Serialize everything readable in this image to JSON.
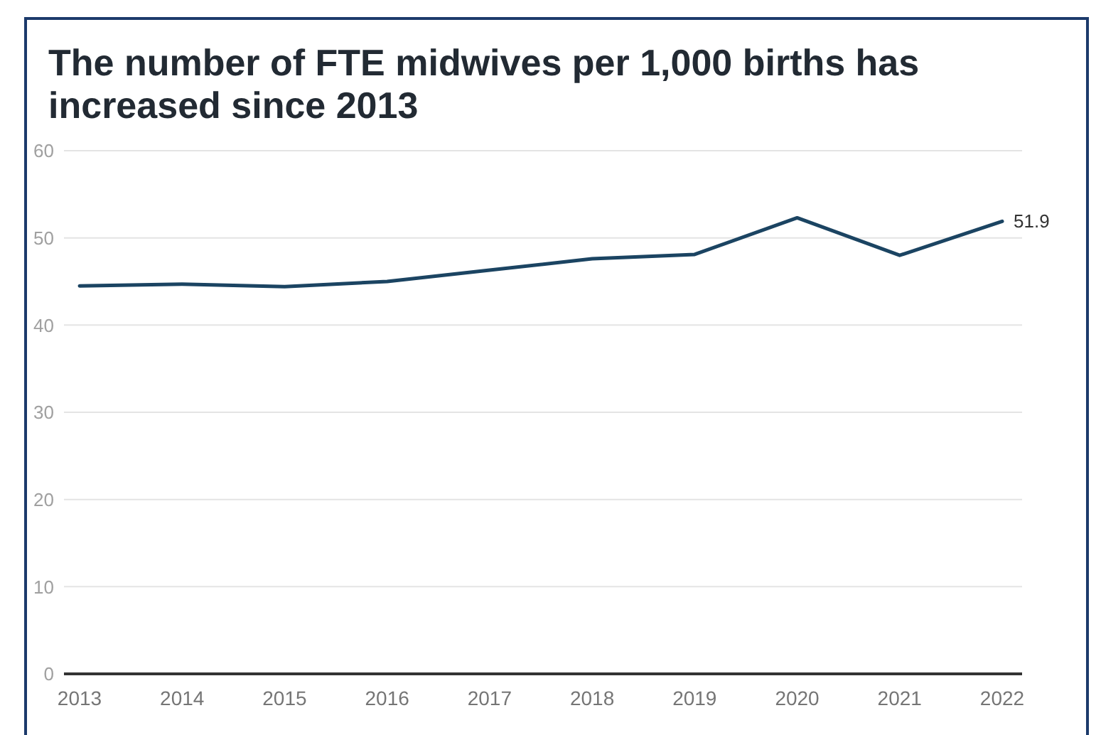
{
  "chart_data": {
    "type": "line",
    "title": "The number of FTE midwives per 1,000 births has increased since 2013",
    "categories": [
      "2013",
      "2014",
      "2015",
      "2016",
      "2017",
      "2018",
      "2019",
      "2020",
      "2021",
      "2022"
    ],
    "series": [
      {
        "color": "#1b4462",
        "values": [
          44.5,
          44.7,
          44.4,
          45.0,
          46.3,
          47.6,
          48.1,
          52.3,
          48.0,
          51.9
        ],
        "value_labels": [
          null,
          null,
          null,
          null,
          null,
          null,
          null,
          null,
          null,
          "51.9"
        ]
      }
    ],
    "ylim": [
      0,
      60
    ],
    "yticks": [
      0,
      10,
      20,
      30,
      40,
      50,
      60
    ],
    "grid": "y"
  }
}
